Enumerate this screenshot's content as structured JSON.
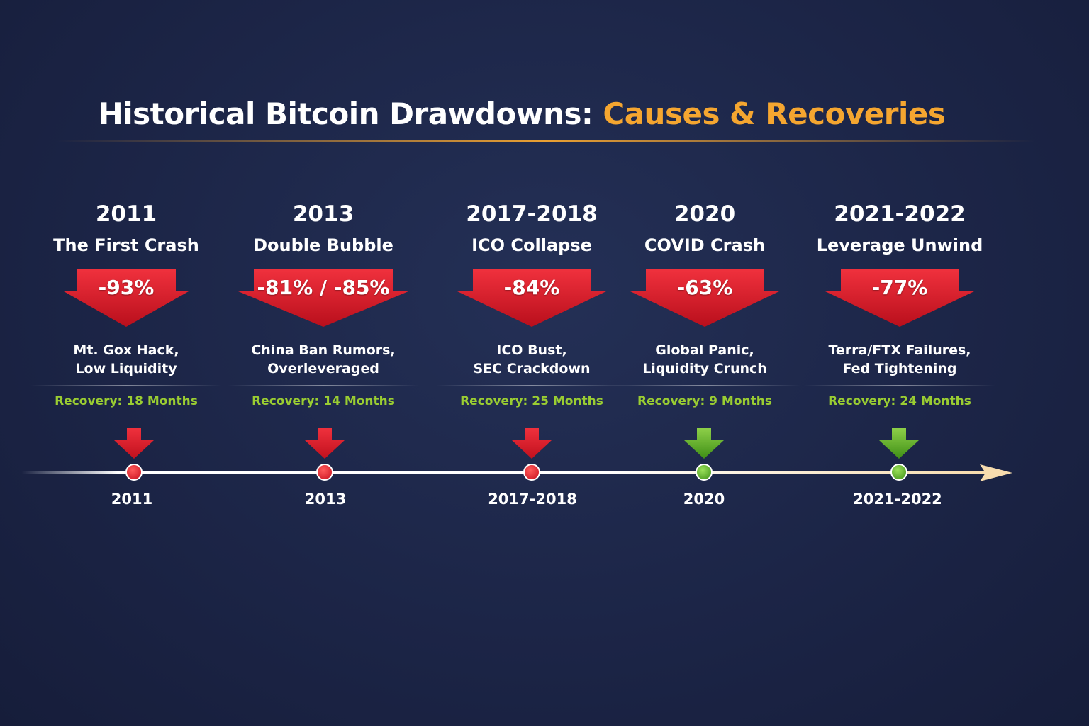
{
  "title": {
    "main": "Historical Bitcoin Drawdowns:",
    "accent": "Causes & Recoveries"
  },
  "colors": {
    "accent": "#f5a630",
    "drop_red": "#e0202e",
    "recovery_green": "#9acd32",
    "marker_green": "#5aab22",
    "background": "#1c2547"
  },
  "events": [
    {
      "year": "2011",
      "name": "The First Crash",
      "drawdown": "-93%",
      "cause_line1": "Mt. Gox Hack,",
      "cause_line2": "Low Liquidity",
      "recovery": "Recovery: 18 Months",
      "marker": "red",
      "timeline_label": "2011"
    },
    {
      "year": "2013",
      "name": "Double Bubble",
      "drawdown": "-81% / -85%",
      "cause_line1": "China Ban Rumors,",
      "cause_line2": "Overleveraged",
      "recovery": "Recovery: 14 Months",
      "marker": "red",
      "timeline_label": "2013"
    },
    {
      "year": "2017-2018",
      "name": "ICO Collapse",
      "drawdown": "-84%",
      "cause_line1": "ICO Bust,",
      "cause_line2": "SEC Crackdown",
      "recovery": "Recovery: 25 Months",
      "marker": "red",
      "timeline_label": "2017-2018"
    },
    {
      "year": "2020",
      "name": "COVID Crash",
      "drawdown": "-63%",
      "cause_line1": "Global Panic,",
      "cause_line2": "Liquidity Crunch",
      "recovery": "Recovery: 9 Months",
      "marker": "green",
      "timeline_label": "2020"
    },
    {
      "year": "2021-2022",
      "name": "Leverage Unwind",
      "drawdown": "-77%",
      "cause_line1": "Terra/FTX Failures,",
      "cause_line2": "Fed Tightening",
      "recovery": "Recovery: 24 Months",
      "marker": "green",
      "timeline_label": "2021-2022"
    }
  ]
}
